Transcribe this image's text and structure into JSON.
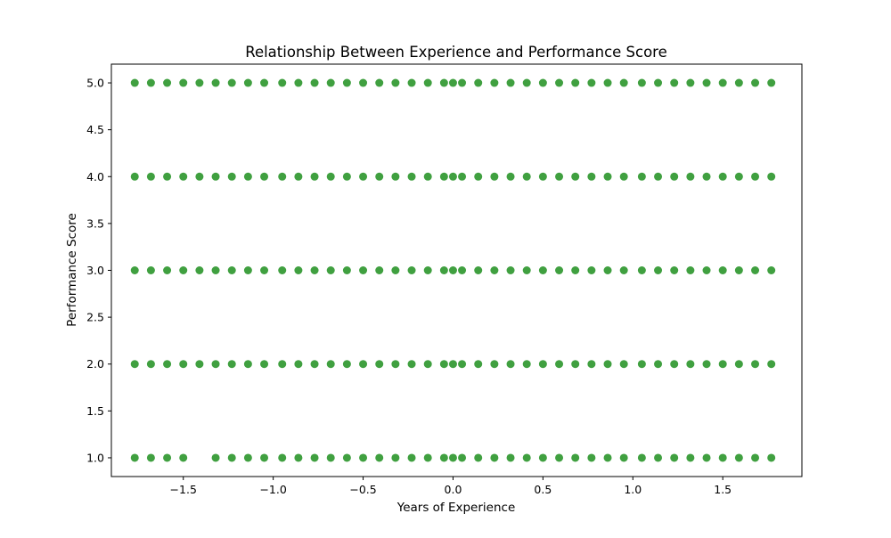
{
  "chart_data": {
    "type": "scatter",
    "title": "Relationship Between Experience and Performance Score",
    "xlabel": "Years of Experience",
    "ylabel": "Performance Score",
    "xlim": [
      -1.9,
      1.94
    ],
    "ylim": [
      0.8,
      5.2
    ],
    "x_ticks": [
      -1.5,
      -1.0,
      -0.5,
      0.0,
      0.5,
      1.0,
      1.5
    ],
    "x_tick_labels": [
      "−1.5",
      "−1.0",
      "−0.5",
      "0.0",
      "0.5",
      "1.0",
      "1.5"
    ],
    "y_ticks": [
      1.0,
      1.5,
      2.0,
      2.5,
      3.0,
      3.5,
      4.0,
      4.5,
      5.0
    ],
    "y_tick_labels": [
      "1.0",
      "1.5",
      "2.0",
      "2.5",
      "3.0",
      "3.5",
      "4.0",
      "4.5",
      "5.0"
    ],
    "grid": false,
    "marker_color": "#008000",
    "marker_alpha": 0.75,
    "x_levels": [
      -1.77,
      -1.68,
      -1.59,
      -1.5,
      -1.41,
      -1.32,
      -1.23,
      -1.14,
      -1.05,
      -0.95,
      -0.86,
      -0.77,
      -0.68,
      -0.59,
      -0.5,
      -0.41,
      -0.32,
      -0.23,
      -0.14,
      -0.05,
      0.0,
      0.05,
      0.14,
      0.23,
      0.32,
      0.41,
      0.5,
      0.59,
      0.68,
      0.77,
      0.86,
      0.95,
      1.05,
      1.14,
      1.23,
      1.32,
      1.41,
      1.5,
      1.59,
      1.68,
      1.77
    ],
    "series": [
      {
        "y": 5.0,
        "x": [
          -1.77,
          -1.68,
          -1.59,
          -1.5,
          -1.41,
          -1.32,
          -1.23,
          -1.14,
          -1.05,
          -0.95,
          -0.86,
          -0.77,
          -0.68,
          -0.59,
          -0.5,
          -0.41,
          -0.32,
          -0.23,
          -0.14,
          -0.05,
          0.0,
          0.05,
          0.14,
          0.23,
          0.32,
          0.41,
          0.5,
          0.59,
          0.68,
          0.77,
          0.86,
          0.95,
          1.05,
          1.14,
          1.23,
          1.32,
          1.41,
          1.5,
          1.59,
          1.68,
          1.77
        ]
      },
      {
        "y": 4.0,
        "x": [
          -1.77,
          -1.68,
          -1.59,
          -1.5,
          -1.41,
          -1.32,
          -1.23,
          -1.14,
          -1.05,
          -0.95,
          -0.86,
          -0.77,
          -0.68,
          -0.59,
          -0.5,
          -0.41,
          -0.32,
          -0.23,
          -0.14,
          -0.05,
          0.0,
          0.05,
          0.14,
          0.23,
          0.32,
          0.41,
          0.5,
          0.59,
          0.68,
          0.77,
          0.86,
          0.95,
          1.05,
          1.14,
          1.23,
          1.32,
          1.41,
          1.5,
          1.59,
          1.68,
          1.77
        ]
      },
      {
        "y": 3.0,
        "x": [
          -1.77,
          -1.68,
          -1.59,
          -1.5,
          -1.41,
          -1.32,
          -1.23,
          -1.14,
          -1.05,
          -0.95,
          -0.86,
          -0.77,
          -0.68,
          -0.59,
          -0.5,
          -0.41,
          -0.32,
          -0.23,
          -0.14,
          -0.05,
          0.0,
          0.05,
          0.14,
          0.23,
          0.32,
          0.41,
          0.5,
          0.59,
          0.68,
          0.77,
          0.86,
          0.95,
          1.05,
          1.14,
          1.23,
          1.32,
          1.41,
          1.5,
          1.59,
          1.68,
          1.77
        ]
      },
      {
        "y": 2.0,
        "x": [
          -1.77,
          -1.68,
          -1.59,
          -1.5,
          -1.41,
          -1.32,
          -1.23,
          -1.14,
          -1.05,
          -0.95,
          -0.86,
          -0.77,
          -0.68,
          -0.59,
          -0.5,
          -0.41,
          -0.32,
          -0.23,
          -0.14,
          -0.05,
          0.0,
          0.05,
          0.14,
          0.23,
          0.32,
          0.41,
          0.5,
          0.59,
          0.68,
          0.77,
          0.86,
          0.95,
          1.05,
          1.14,
          1.23,
          1.32,
          1.41,
          1.5,
          1.59,
          1.68,
          1.77
        ]
      },
      {
        "y": 1.0,
        "x": [
          -1.77,
          -1.68,
          -1.59,
          -1.5,
          -1.32,
          -1.23,
          -1.14,
          -1.05,
          -0.95,
          -0.86,
          -0.77,
          -0.68,
          -0.59,
          -0.5,
          -0.41,
          -0.32,
          -0.23,
          -0.14,
          -0.05,
          0.0,
          0.05,
          0.14,
          0.23,
          0.32,
          0.41,
          0.5,
          0.59,
          0.68,
          0.77,
          0.86,
          0.95,
          1.05,
          1.14,
          1.23,
          1.32,
          1.41,
          1.5,
          1.59,
          1.68,
          1.77
        ]
      }
    ]
  }
}
